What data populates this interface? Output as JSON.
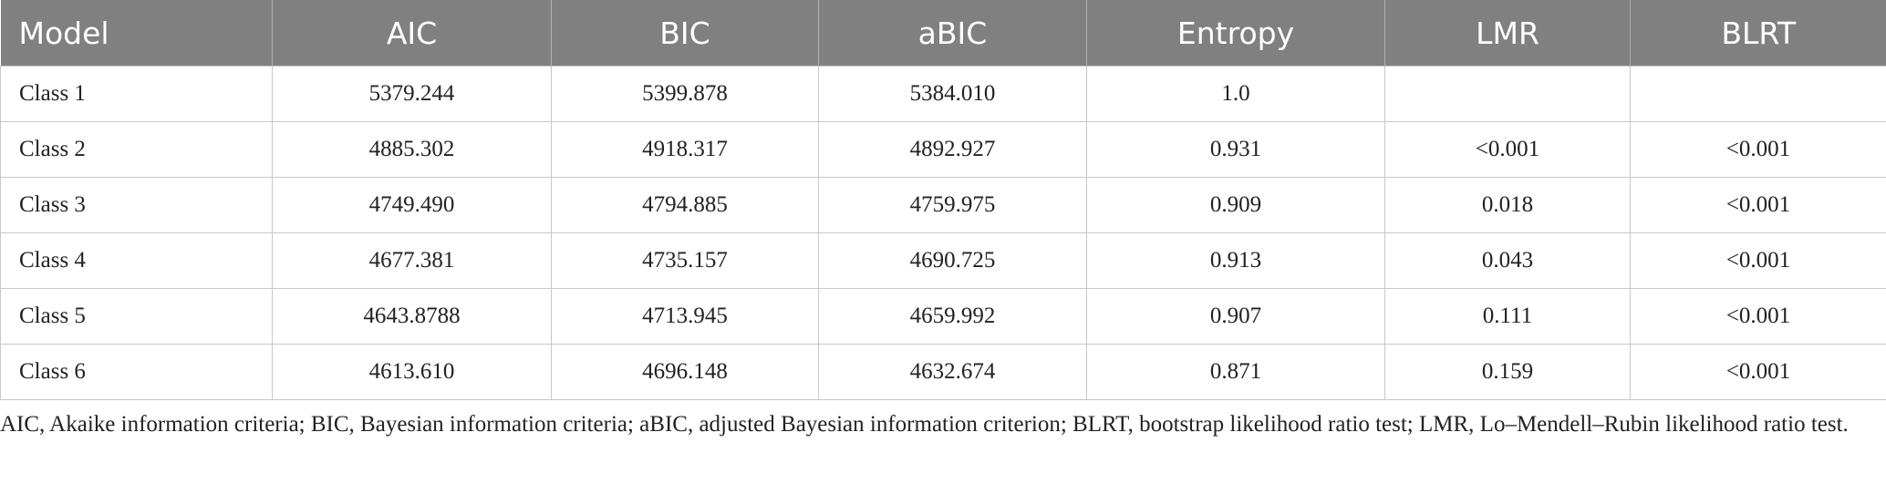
{
  "table": {
    "header": [
      "Model",
      "AIC",
      "BIC",
      "aBIC",
      "Entropy",
      "LMR",
      "BLRT"
    ],
    "rows": [
      [
        "Class 1",
        "5379.244",
        "5399.878",
        "5384.010",
        "1.0",
        null,
        null
      ],
      [
        "Class 2",
        "4885.302",
        "4918.317",
        "4892.927",
        "0.931",
        "<0.001",
        "<0.001"
      ],
      [
        "Class 3",
        "4749.490",
        "4794.885",
        "4759.975",
        "0.909",
        "0.018",
        "<0.001"
      ],
      [
        "Class 4",
        "4677.381",
        "4735.157",
        "4690.725",
        "0.913",
        "0.043",
        "<0.001"
      ],
      [
        "Class 5",
        "4643.8788",
        "4713.945",
        "4659.992",
        "0.907",
        "0.111",
        "<0.001"
      ],
      [
        "Class 6",
        "4613.610",
        "4696.148",
        "4632.674",
        "0.871",
        "0.159",
        "<0.001"
      ]
    ]
  },
  "footnote": "AIC, Akaike information criteria; BIC, Bayesian information criteria; aBIC, adjusted Bayesian information criterion; BLRT, bootstrap likelihood ratio test; LMR, Lo–Mendell–Rubin likelihood ratio test."
}
